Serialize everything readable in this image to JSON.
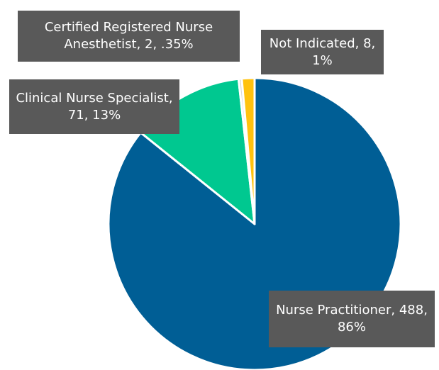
{
  "chart_data": {
    "type": "pie",
    "labels": [
      "Nurse Practitioner, 488, 86%",
      "Clinical Nurse Specialist, 71, 13%",
      "Certified Registered Nurse Anesthetist, 2, .35%",
      "Not Indicated, 8, 1%"
    ],
    "values": [
      488,
      71,
      2,
      8
    ],
    "colors": [
      "#005e95",
      "#00c890",
      "#d9d9d9",
      "#ffc20e"
    ]
  }
}
